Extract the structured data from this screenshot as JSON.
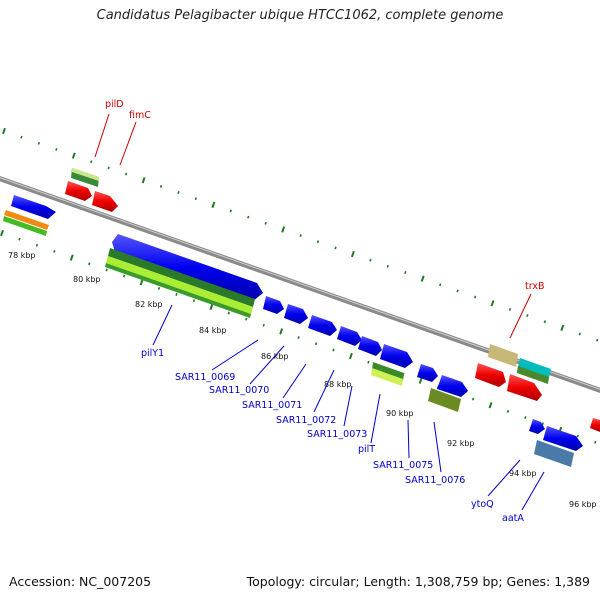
{
  "title": "Candidatus Pelagibacter ubique HTCC1062, complete genome",
  "footer": {
    "accession": "Accession: NC_007205",
    "summary": "Topology: circular; Length: 1,308,759 bp; Genes: 1,389"
  },
  "colors": {
    "backbone": "#8a8a8a",
    "tick": "#1f7a1f",
    "cds_blue": "#0000ee",
    "cds_red": "#ee0000",
    "label_blue": "#0000cc",
    "label_red": "#cc0000"
  },
  "kbp_labels": [
    "78 kbp",
    "80 kbp",
    "82 kbp",
    "84 kbp",
    "86 kbp",
    "88 kbp",
    "90 kbp",
    "92 kbp",
    "94 kbp",
    "96 kbp"
  ],
  "gene_labels_blue": [
    "pilY1",
    "SAR11_0069",
    "SAR11_0070",
    "SAR11_0071",
    "SAR11_0072",
    "SAR11_0073",
    "pilT",
    "SAR11_0075",
    "SAR11_0076",
    "ytoQ",
    "aatA"
  ],
  "gene_labels_red": [
    "pilD",
    "fimC",
    "trxB"
  ]
}
